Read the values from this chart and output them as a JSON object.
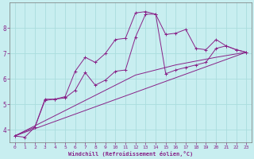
{
  "xlabel": "Windchill (Refroidissement éolien,°C)",
  "background_color": "#c8eef0",
  "grid_color": "#aadddd",
  "line_color": "#882288",
  "x_ticks": [
    0,
    1,
    2,
    3,
    4,
    5,
    6,
    7,
    8,
    9,
    10,
    11,
    12,
    13,
    14,
    15,
    16,
    17,
    18,
    19,
    20,
    21,
    22,
    23
  ],
  "ylim": [
    3.5,
    9.0
  ],
  "xlim": [
    -0.5,
    23.5
  ],
  "yticks": [
    4,
    5,
    6,
    7,
    8
  ],
  "series1_x": [
    0,
    1,
    2,
    3,
    4,
    5,
    6,
    7,
    8,
    9,
    10,
    11,
    12,
    13,
    14,
    15,
    16,
    17,
    18,
    19,
    20,
    21,
    22,
    23
  ],
  "series1_y": [
    3.75,
    3.7,
    4.1,
    5.2,
    5.2,
    5.3,
    6.3,
    6.85,
    6.65,
    7.0,
    7.55,
    7.6,
    8.6,
    8.65,
    8.55,
    7.75,
    7.8,
    7.95,
    7.2,
    7.15,
    7.55,
    7.3,
    7.15,
    7.05
  ],
  "series2_x": [
    0,
    2,
    3,
    4,
    5,
    6,
    7,
    8,
    9,
    10,
    11,
    12,
    13,
    14,
    15,
    16,
    17,
    18,
    19,
    20,
    21,
    22,
    23
  ],
  "series2_y": [
    3.75,
    4.1,
    5.15,
    5.2,
    5.25,
    5.55,
    6.25,
    5.75,
    5.95,
    6.3,
    6.35,
    7.65,
    8.55,
    8.55,
    6.2,
    6.35,
    6.45,
    6.55,
    6.65,
    7.2,
    7.3,
    7.15,
    7.05
  ],
  "series3_x": [
    0,
    23
  ],
  "series3_y": [
    3.75,
    7.05
  ],
  "series4_x": [
    0,
    4,
    8,
    12,
    16,
    20,
    23
  ],
  "series4_y": [
    3.75,
    4.55,
    5.35,
    6.15,
    6.55,
    6.85,
    7.05
  ]
}
